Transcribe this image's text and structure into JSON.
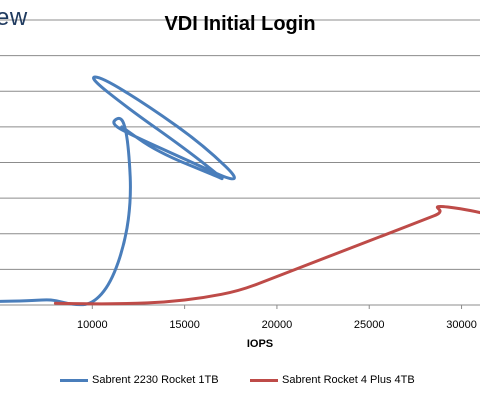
{
  "brand": "ew",
  "chart_data": {
    "type": "line",
    "title": "VDI Initial Login",
    "xlabel": "IOPS",
    "ylabel": "",
    "xlim": [
      5000,
      32000
    ],
    "ylim": [
      0,
      8
    ],
    "x_ticks": [
      "10000",
      "15000",
      "20000",
      "25000",
      "30000"
    ],
    "y_gridlines": [
      1,
      2,
      3,
      4,
      5,
      6,
      7,
      8
    ],
    "grid": true,
    "legend_position": "bottom",
    "series": [
      {
        "name": "Sabrent 2230 Rocket 1TB",
        "color": "#4a7ebb",
        "points": [
          [
            4800,
            0.1
          ],
          [
            6500,
            0.12
          ],
          [
            7500,
            0.15
          ],
          [
            8000,
            0.13
          ],
          [
            9000,
            0.0
          ],
          [
            10000,
            0.02
          ],
          [
            11000,
            0.6
          ],
          [
            11800,
            1.8
          ],
          [
            12100,
            3.0
          ],
          [
            12000,
            4.2
          ],
          [
            11800,
            5.0
          ],
          [
            11500,
            5.3
          ],
          [
            11000,
            5.1
          ],
          [
            12000,
            4.8
          ],
          [
            15000,
            4.1
          ],
          [
            18400,
            3.3
          ],
          [
            16000,
            4.5
          ],
          [
            13000,
            5.6
          ],
          [
            10500,
            6.4
          ],
          [
            9800,
            6.4
          ],
          [
            12000,
            5.5
          ],
          [
            15000,
            4.4
          ],
          [
            17200,
            3.5
          ],
          [
            16800,
            3.6
          ],
          [
            13500,
            4.3
          ],
          [
            11600,
            5.0
          ]
        ]
      },
      {
        "name": "Sabrent Rocket 4 Plus 4TB",
        "color": "#be4b48",
        "points": [
          [
            8000,
            0.05
          ],
          [
            10000,
            0.03
          ],
          [
            12000,
            0.04
          ],
          [
            14000,
            0.08
          ],
          [
            16000,
            0.2
          ],
          [
            18000,
            0.4
          ],
          [
            20000,
            0.8
          ],
          [
            22000,
            1.2
          ],
          [
            24000,
            1.6
          ],
          [
            26000,
            2.0
          ],
          [
            28000,
            2.4
          ],
          [
            29000,
            2.6
          ],
          [
            28500,
            2.8
          ],
          [
            30000,
            2.7
          ],
          [
            31000,
            2.6
          ],
          [
            32500,
            2.4
          ]
        ]
      }
    ]
  }
}
